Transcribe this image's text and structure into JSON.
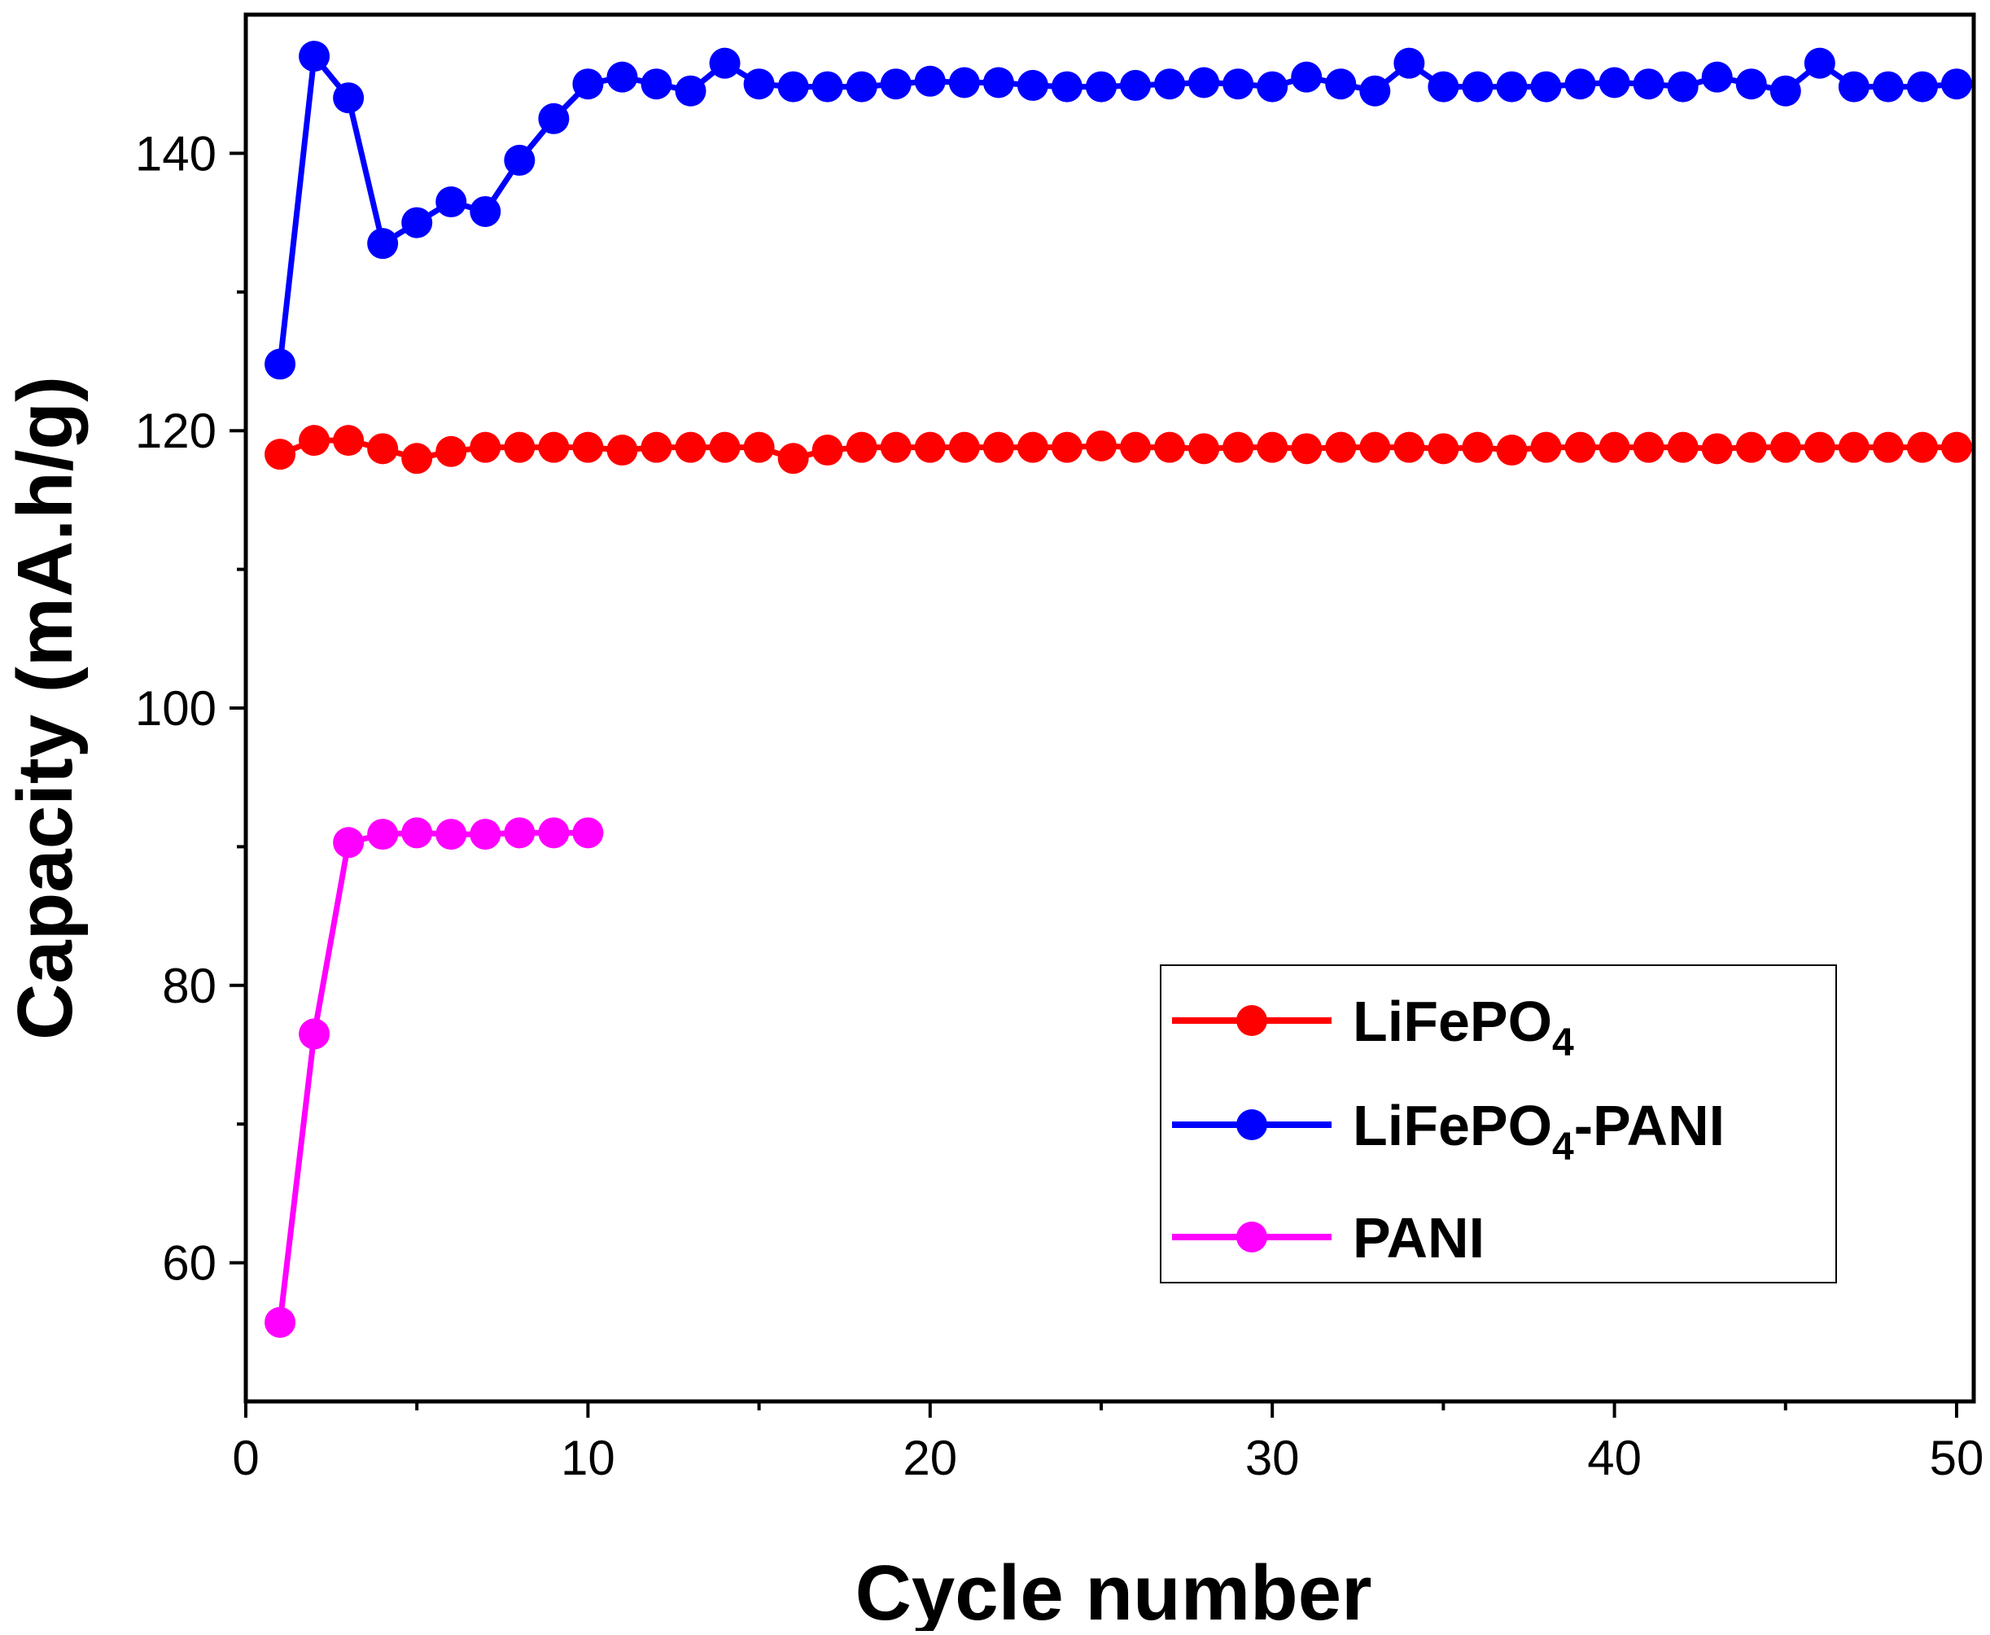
{
  "chart_data": {
    "type": "line",
    "title": "",
    "xlabel": "Cycle number",
    "ylabel": "Capacity (mA.h/g)",
    "xlim": [
      0,
      50.5
    ],
    "ylim": [
      50,
      150
    ],
    "x_major_ticks": [
      0,
      10,
      20,
      30,
      40,
      50
    ],
    "x_minor_ticks": [
      5,
      15,
      25,
      35,
      45
    ],
    "y_major_ticks": [
      60,
      80,
      100,
      120,
      140
    ],
    "y_minor_ticks": [
      70,
      90,
      110,
      130
    ],
    "x_tick_labels": [
      "0",
      "10",
      "20",
      "30",
      "40",
      "50"
    ],
    "y_tick_labels": [
      "60",
      "80",
      "100",
      "120",
      "140"
    ],
    "grid": false,
    "legend_position": "bottom-right",
    "series": [
      {
        "name": "LiFePO4",
        "legend_base": "LiFePO",
        "legend_sub": "4",
        "legend_suffix": "",
        "color": "#ff0000",
        "x": [
          1,
          2,
          3,
          4,
          5,
          6,
          7,
          8,
          9,
          10,
          11,
          12,
          13,
          14,
          15,
          16,
          17,
          18,
          19,
          20,
          21,
          22,
          23,
          24,
          25,
          26,
          27,
          28,
          29,
          30,
          31,
          32,
          33,
          34,
          35,
          36,
          37,
          38,
          39,
          40,
          41,
          42,
          43,
          44,
          45,
          46,
          47,
          48,
          49,
          50
        ],
        "values": [
          118.3,
          119.3,
          119.3,
          118.7,
          118.0,
          118.5,
          118.8,
          118.8,
          118.8,
          118.8,
          118.6,
          118.8,
          118.8,
          118.8,
          118.8,
          118.0,
          118.6,
          118.8,
          118.8,
          118.8,
          118.8,
          118.8,
          118.8,
          118.8,
          118.9,
          118.8,
          118.8,
          118.7,
          118.8,
          118.8,
          118.7,
          118.8,
          118.8,
          118.8,
          118.7,
          118.8,
          118.6,
          118.8,
          118.8,
          118.8,
          118.8,
          118.8,
          118.7,
          118.8,
          118.8,
          118.8,
          118.8,
          118.8,
          118.8,
          118.8
        ]
      },
      {
        "name": "LiFePO4-PANI",
        "legend_base": "LiFePO",
        "legend_sub": "4",
        "legend_suffix": "-PANI",
        "color": "#0000ff",
        "x": [
          1,
          2,
          3,
          4,
          5,
          6,
          7,
          8,
          9,
          10,
          11,
          12,
          13,
          14,
          15,
          16,
          17,
          18,
          19,
          20,
          21,
          22,
          23,
          24,
          25,
          26,
          27,
          28,
          29,
          30,
          31,
          32,
          33,
          34,
          35,
          36,
          37,
          38,
          39,
          40,
          41,
          42,
          43,
          44,
          45,
          46,
          47,
          48,
          49,
          50
        ],
        "values": [
          124.8,
          147.0,
          144.0,
          133.5,
          135.0,
          136.5,
          135.8,
          139.5,
          142.5,
          145.0,
          145.5,
          145.0,
          144.5,
          146.5,
          145.0,
          144.8,
          144.8,
          144.8,
          145.0,
          145.2,
          145.1,
          145.1,
          144.9,
          144.8,
          144.8,
          144.9,
          145.0,
          145.1,
          145.0,
          144.8,
          145.5,
          145.0,
          144.5,
          146.5,
          144.8,
          144.8,
          144.8,
          144.8,
          145.0,
          145.1,
          145.0,
          144.8,
          145.5,
          145.0,
          144.5,
          146.5,
          144.8,
          144.8,
          144.8,
          145.0
        ]
      },
      {
        "name": "PANI",
        "legend_base": "PANI",
        "legend_sub": "",
        "legend_suffix": "",
        "color": "#ff00ff",
        "x": [
          1,
          2,
          3,
          4,
          5,
          6,
          7,
          8,
          9,
          10
        ],
        "values": [
          55.7,
          76.5,
          90.3,
          90.9,
          91.0,
          90.9,
          90.9,
          91.0,
          91.0,
          91.0
        ]
      }
    ]
  }
}
